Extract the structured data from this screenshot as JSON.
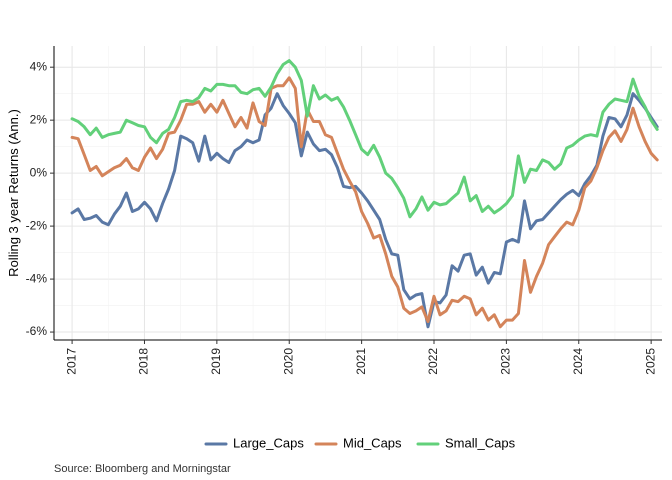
{
  "chart_data": {
    "type": "line",
    "ylabel": "Rolling 3 year Returns (Ann.)",
    "xlabel": "",
    "caption": "Source: Bloomberg and Morningstar",
    "xlim": [
      2016.75,
      2025.15
    ],
    "ylim": [
      -6.3,
      4.8
    ],
    "x_ticks": [
      2017,
      2018,
      2019,
      2020,
      2021,
      2022,
      2023,
      2024,
      2025
    ],
    "x_tick_labels": [
      "2017",
      "2018",
      "2019",
      "2020",
      "2021",
      "2022",
      "2023",
      "2024",
      "2025"
    ],
    "y_ticks": [
      -6,
      -4,
      -2,
      0,
      2,
      4
    ],
    "y_tick_labels": [
      "-6%",
      "-4%",
      "-2%",
      "0%",
      "2%",
      "4%"
    ],
    "grid": true,
    "legend_position": "bottom",
    "x_step": 0.0833333,
    "x_start": 2017.0,
    "series": [
      {
        "name": "Large_Caps",
        "color": "#5a78a5",
        "values": [
          -1.5,
          -1.35,
          -1.75,
          -1.7,
          -1.6,
          -1.85,
          -1.95,
          -1.55,
          -1.25,
          -0.75,
          -1.45,
          -1.35,
          -1.1,
          -1.35,
          -1.8,
          -1.15,
          -0.6,
          0.1,
          1.4,
          1.3,
          1.15,
          0.45,
          1.4,
          0.5,
          0.75,
          0.55,
          0.4,
          0.85,
          1.0,
          1.25,
          1.15,
          1.25,
          2.2,
          2.45,
          3.0,
          2.55,
          2.25,
          1.9,
          0.65,
          1.55,
          1.1,
          0.85,
          0.9,
          0.7,
          0.2,
          -0.5,
          -0.55,
          -0.5,
          -0.75,
          -1.05,
          -1.4,
          -1.75,
          -2.5,
          -3.05,
          -3.1,
          -4.4,
          -4.75,
          -4.6,
          -4.55,
          -5.8,
          -4.85,
          -4.9,
          -4.6,
          -3.5,
          -3.7,
          -3.1,
          -3.05,
          -3.85,
          -3.55,
          -4.15,
          -3.75,
          -3.8,
          -2.6,
          -2.5,
          -2.6,
          -1.05,
          -2.1,
          -1.8,
          -1.75,
          -1.5,
          -1.25,
          -1.0,
          -0.8,
          -0.65,
          -0.85,
          -0.4,
          -0.1,
          0.3,
          1.4,
          2.1,
          2.05,
          1.75,
          2.2,
          3.0,
          2.75,
          2.45,
          2.1,
          1.75
        ]
      },
      {
        "name": "Mid_Caps",
        "color": "#d4845a",
        "values": [
          1.35,
          1.3,
          0.7,
          0.1,
          0.25,
          -0.1,
          0.05,
          0.2,
          0.3,
          0.55,
          0.2,
          0.1,
          0.6,
          0.95,
          0.55,
          0.9,
          1.5,
          1.55,
          2.0,
          2.6,
          2.6,
          2.7,
          2.3,
          2.6,
          2.3,
          2.75,
          2.25,
          1.75,
          2.1,
          1.7,
          2.65,
          1.95,
          1.8,
          3.2,
          3.3,
          3.3,
          3.6,
          3.2,
          1.0,
          2.4,
          1.95,
          1.95,
          1.45,
          1.35,
          0.75,
          0.15,
          -0.3,
          -0.7,
          -1.45,
          -1.9,
          -2.45,
          -2.35,
          -3.05,
          -3.9,
          -4.3,
          -5.1,
          -5.3,
          -5.2,
          -5.05,
          -5.6,
          -4.65,
          -5.35,
          -5.2,
          -4.8,
          -4.85,
          -4.65,
          -4.75,
          -5.35,
          -5.1,
          -5.55,
          -5.35,
          -5.8,
          -5.55,
          -5.55,
          -5.3,
          -3.3,
          -4.5,
          -3.9,
          -3.4,
          -2.7,
          -2.4,
          -2.1,
          -1.85,
          -1.95,
          -1.4,
          -0.55,
          -0.3,
          0.2,
          0.85,
          1.35,
          1.6,
          1.2,
          1.65,
          2.45,
          1.75,
          1.2,
          0.75,
          0.5
        ]
      },
      {
        "name": "Small_Caps",
        "color": "#62d07a",
        "values": [
          2.05,
          1.95,
          1.75,
          1.45,
          1.7,
          1.35,
          1.45,
          1.5,
          1.55,
          2.0,
          1.9,
          1.8,
          1.75,
          1.35,
          1.15,
          1.5,
          1.65,
          2.1,
          2.7,
          2.75,
          2.7,
          2.85,
          3.2,
          3.1,
          3.35,
          3.35,
          3.3,
          3.3,
          3.05,
          3.0,
          3.15,
          3.2,
          2.9,
          3.25,
          3.75,
          4.1,
          4.25,
          4.0,
          3.5,
          2.15,
          3.3,
          2.8,
          2.95,
          2.75,
          2.85,
          2.5,
          2.0,
          1.45,
          0.9,
          0.7,
          1.05,
          0.6,
          0.0,
          -0.2,
          -0.55,
          -0.95,
          -1.65,
          -1.35,
          -0.9,
          -1.4,
          -1.1,
          -1.2,
          -1.15,
          -0.95,
          -0.75,
          -0.15,
          -1.05,
          -0.85,
          -1.45,
          -1.25,
          -1.5,
          -1.35,
          -1.15,
          -0.85,
          0.65,
          -0.35,
          0.15,
          0.1,
          0.5,
          0.4,
          0.15,
          0.35,
          0.95,
          1.05,
          1.25,
          1.4,
          1.45,
          1.4,
          2.3,
          2.6,
          2.8,
          2.75,
          2.7,
          3.55,
          2.9,
          2.5,
          2.0,
          1.65
        ]
      }
    ]
  }
}
